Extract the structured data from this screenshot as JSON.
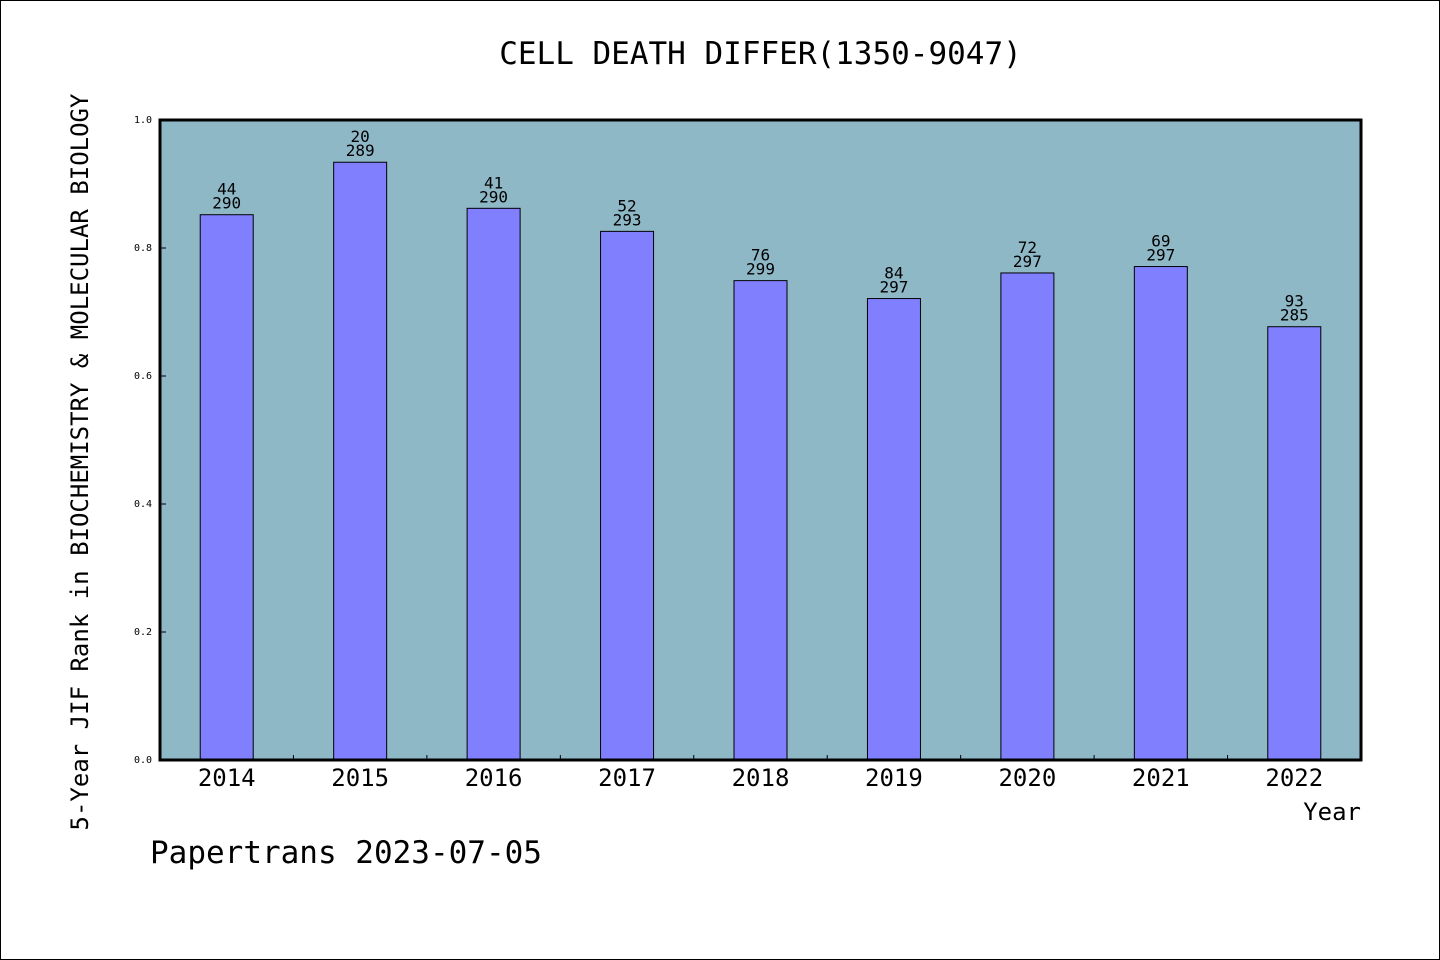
{
  "chart_data": {
    "type": "bar",
    "title": "CELL DEATH DIFFER(1350-9047)",
    "xlabel": "Year",
    "ylabel": "5-Year JIF Rank in BIOCHEMISTRY & MOLECULAR BIOLOGY",
    "categories": [
      "2014",
      "2015",
      "2016",
      "2017",
      "2018",
      "2019",
      "2020",
      "2021",
      "2022"
    ],
    "values": [
      0.852,
      0.934,
      0.862,
      0.826,
      0.749,
      0.721,
      0.761,
      0.771,
      0.677
    ],
    "ranks": [
      "44",
      "20",
      "41",
      "52",
      "76",
      "84",
      "72",
      "69",
      "93"
    ],
    "totals": [
      "290",
      "289",
      "290",
      "293",
      "299",
      "297",
      "297",
      "297",
      "285"
    ],
    "ylim": [
      0,
      1.0
    ],
    "yticks": [
      "0.0",
      "0.2",
      "0.4",
      "0.6",
      "0.8",
      "1.0"
    ],
    "grid": false,
    "colors": {
      "plot_bg": "#8fb8c7",
      "bar": "#8080ff",
      "bar_edge": "#000000"
    }
  },
  "footer": "Papertrans 2023-07-05"
}
